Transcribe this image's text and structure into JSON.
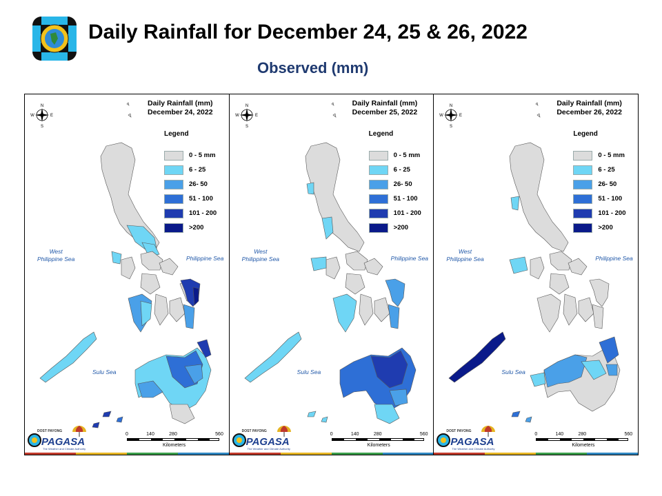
{
  "header": {
    "title": "Daily Rainfall for December 24, 25 & 26, 2022",
    "subtitle": "Observed (mm)"
  },
  "legend": {
    "title": "Legend",
    "classes": [
      {
        "label": "0 - 5 mm",
        "color": "#dcdcdc"
      },
      {
        "label": "6 - 25",
        "color": "#6fd6f5"
      },
      {
        "label": "26- 50",
        "color": "#4aa0e8"
      },
      {
        "label": "51 - 100",
        "color": "#2e6fd6"
      },
      {
        "label": "101 - 200",
        "color": "#1f3cb0"
      },
      {
        "label": ">200",
        "color": "#0a1a8a"
      }
    ]
  },
  "panels": [
    {
      "title_line1": "Daily Rainfall (mm)",
      "title_line2": "December 24, 2022"
    },
    {
      "title_line1": "Daily Rainfall (mm)",
      "title_line2": "December 25, 2022"
    },
    {
      "title_line1": "Daily Rainfall (mm)",
      "title_line2": "December 26, 2022"
    }
  ],
  "seas": {
    "west_line1": "West",
    "west_line2": "Philippine Sea",
    "philippine": "Philippine Sea",
    "sulu": "Sulu Sea"
  },
  "compass": {
    "n": "N",
    "s": "S",
    "e": "E",
    "w": "W"
  },
  "scale": {
    "ticks": [
      "0",
      "140",
      "280",
      "560"
    ],
    "unit": "Kilometers"
  },
  "branding": {
    "small": "DOST PAYONG",
    "word": "PAGASA",
    "tagline": "The Weather and Climate Authority"
  }
}
